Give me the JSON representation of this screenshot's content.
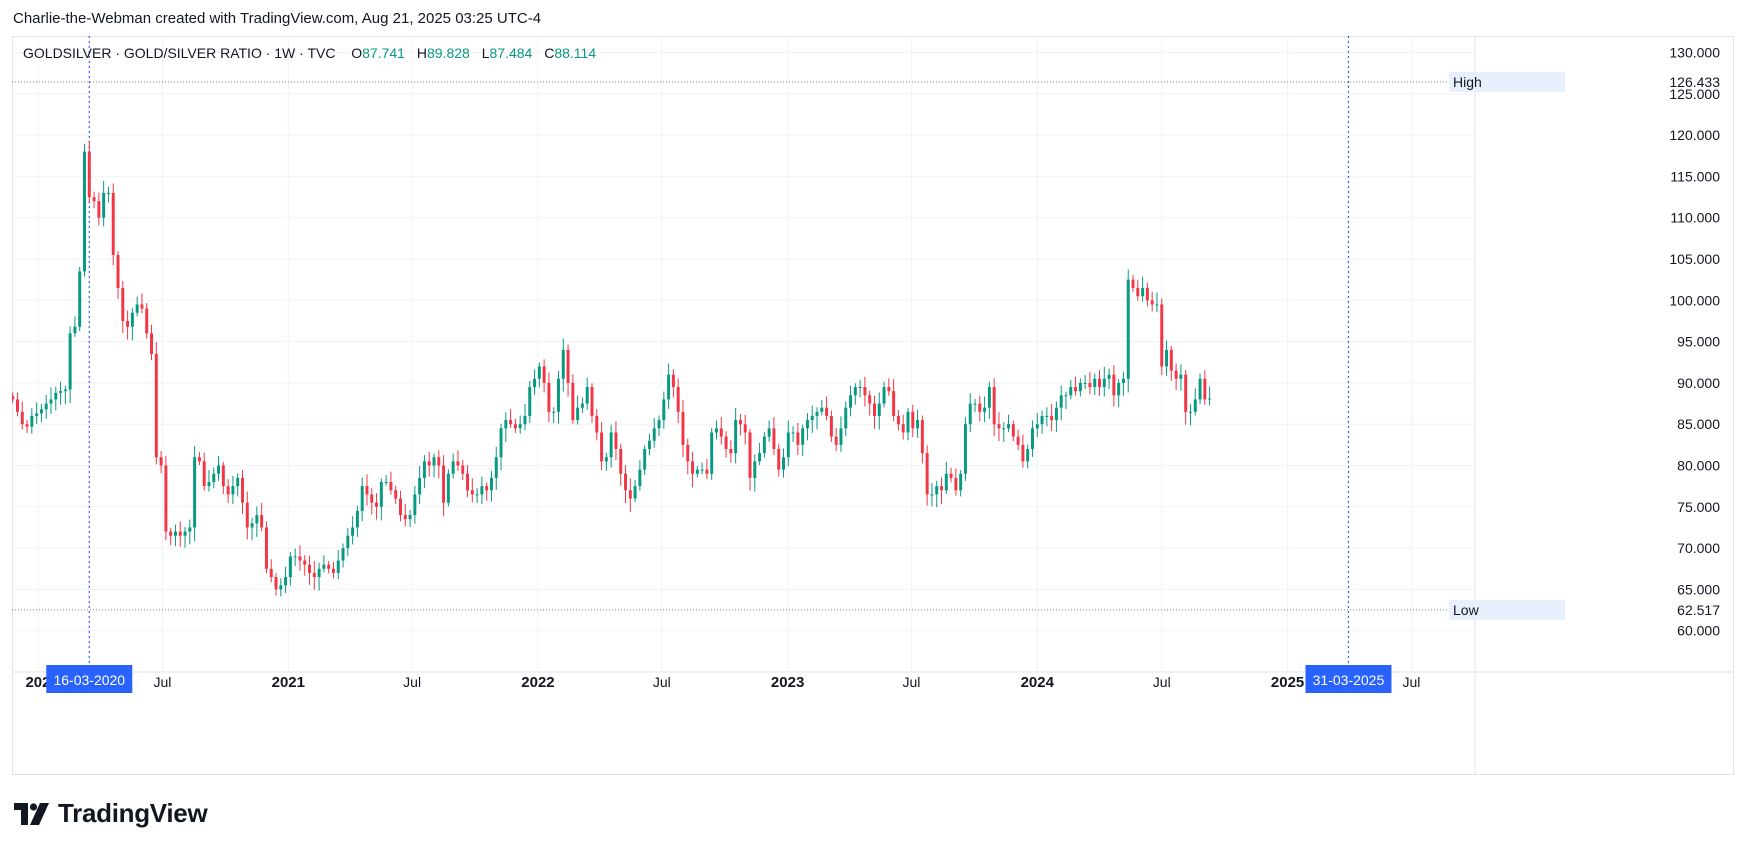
{
  "header": {
    "credit": "Charlie-the-Webman created with TradingView.com, Aug 21, 2025 03:25 UTC-4"
  },
  "legend": {
    "symbol": "GOLDSILVER · GOLD/SILVER RATIO · 1W · TVC",
    "o_key": "O",
    "o_value": "87.741",
    "h_key": "H",
    "h_value": "89.828",
    "l_key": "L",
    "l_value": "87.484",
    "c_key": "C",
    "c_value": "88.114"
  },
  "logo": {
    "text": "TradingView"
  },
  "colors": {
    "up": "#089981",
    "down": "#f23645",
    "grid": "#f0f3fa",
    "marker": "#2962ff",
    "ref_line": "#787b86",
    "hl_label_bg": "#e8f0fe"
  },
  "chart_data": {
    "type": "candlestick",
    "title": "GOLDSILVER · GOLD/SILVER RATIO · 1W · TVC",
    "xlabel": "",
    "ylabel": "",
    "ylim": [
      55,
      132
    ],
    "y_ticks": [
      "60.000",
      "65.000",
      "70.000",
      "75.000",
      "80.000",
      "85.000",
      "90.000",
      "95.000",
      "100.000",
      "105.000",
      "110.000",
      "115.000",
      "120.000",
      "125.000",
      "130.000"
    ],
    "x_ticks": [
      {
        "label": "202",
        "date": "2020-01-01",
        "bold": true
      },
      {
        "label": "Jul",
        "date": "2020-07-01",
        "bold": false
      },
      {
        "label": "2021",
        "date": "2021-01-01",
        "bold": true
      },
      {
        "label": "Jul",
        "date": "2021-07-01",
        "bold": false
      },
      {
        "label": "2022",
        "date": "2022-01-01",
        "bold": true
      },
      {
        "label": "Jul",
        "date": "2022-07-01",
        "bold": false
      },
      {
        "label": "2023",
        "date": "2023-01-01",
        "bold": true
      },
      {
        "label": "Jul",
        "date": "2023-07-01",
        "bold": false
      },
      {
        "label": "2024",
        "date": "2024-01-01",
        "bold": true
      },
      {
        "label": "Jul",
        "date": "2024-07-01",
        "bold": false
      },
      {
        "label": "2025",
        "date": "2025-01-01",
        "bold": true
      },
      {
        "label": "Jul",
        "date": "2025-07-01",
        "bold": false
      }
    ],
    "x_range": [
      "2019-11-24",
      "2025-10-02"
    ],
    "reference_lines": [
      {
        "label": "High",
        "value": 126.433,
        "value_text": "126.433"
      },
      {
        "label": "Low",
        "value": 62.517,
        "value_text": "62.517"
      }
    ],
    "date_markers": [
      {
        "label": "16-03-2020",
        "date": "2020-03-16"
      },
      {
        "label": "31-03-2025",
        "date": "2025-03-31"
      }
    ],
    "first_candle_date": "2019-11-25",
    "interval": "1W",
    "close_series": [
      88.0,
      86.5,
      85.0,
      84.7,
      86.0,
      86.3,
      86.8,
      87.5,
      88.0,
      88.8,
      89.0,
      89.2,
      96.0,
      96.8,
      103.5,
      118.0,
      112.5,
      112.0,
      110.0,
      113.0,
      113.0,
      105.5,
      101.5,
      97.5,
      96.8,
      98.5,
      99.5,
      99.0,
      96.0,
      93.5,
      81.0,
      80.0,
      72.0,
      71.5,
      72.0,
      71.5,
      72.0,
      72.5,
      81.0,
      80.5,
      77.5,
      78.0,
      79.0,
      80.0,
      77.5,
      76.5,
      77.5,
      78.5,
      75.5,
      72.5,
      73.0,
      74.0,
      72.5,
      67.5,
      66.5,
      65.0,
      65.5,
      66.5,
      69.0,
      69.0,
      68.5,
      68.0,
      67.0,
      66.5,
      67.5,
      68.0,
      67.5,
      67.0,
      68.5,
      70.0,
      71.5,
      72.5,
      74.5,
      77.5,
      76.5,
      75.5,
      75.0,
      78.0,
      78.0,
      77.0,
      76.0,
      74.0,
      73.5,
      74.0,
      76.5,
      78.5,
      80.5,
      80.0,
      81.0,
      80.0,
      75.5,
      79.0,
      80.5,
      80.0,
      79.0,
      77.0,
      76.5,
      76.5,
      77.5,
      77.0,
      78.5,
      81.0,
      84.5,
      85.5,
      85.0,
      84.5,
      85.0,
      86.0,
      89.5,
      90.5,
      92.0,
      90.0,
      86.5,
      86.5,
      90.5,
      94.0,
      90.0,
      85.5,
      87.0,
      87.5,
      89.5,
      86.0,
      84.0,
      80.5,
      81.0,
      84.0,
      82.0,
      79.0,
      77.0,
      76.0,
      77.5,
      79.5,
      82.0,
      83.0,
      84.5,
      85.5,
      88.0,
      91.0,
      89.5,
      86.5,
      82.5,
      80.5,
      79.0,
      79.5,
      79.5,
      79.0,
      84.0,
      84.5,
      83.5,
      82.0,
      81.5,
      85.5,
      85.0,
      84.0,
      78.5,
      80.5,
      81.5,
      83.5,
      84.5,
      82.0,
      79.5,
      81.0,
      84.0,
      84.0,
      82.5,
      84.5,
      85.5,
      86.0,
      86.5,
      87.0,
      86.0,
      83.5,
      82.5,
      84.5,
      87.0,
      88.5,
      89.5,
      89.5,
      88.5,
      87.5,
      86.0,
      87.5,
      89.5,
      89.0,
      86.0,
      85.0,
      84.0,
      86.5,
      84.5,
      85.5,
      81.5,
      76.5,
      76.5,
      77.5,
      77.0,
      79.0,
      78.5,
      77.0,
      79.0,
      85.0,
      87.5,
      87.5,
      86.5,
      87.0,
      89.5,
      85.0,
      84.5,
      84.5,
      85.0,
      83.5,
      82.5,
      80.5,
      82.0,
      84.5,
      85.0,
      86.0,
      86.0,
      85.5,
      87.0,
      88.5,
      88.5,
      89.5,
      89.0,
      90.0,
      90.0,
      89.5,
      90.5,
      89.5,
      90.5,
      91.0,
      88.5,
      90.0,
      90.5,
      102.5,
      101.5,
      100.5,
      101.5,
      100.0,
      99.5,
      99.5,
      92.0,
      94.0,
      91.5,
      90.5,
      91.0,
      86.5,
      86.5,
      88.0,
      90.5,
      88.0,
      88.114
    ]
  }
}
